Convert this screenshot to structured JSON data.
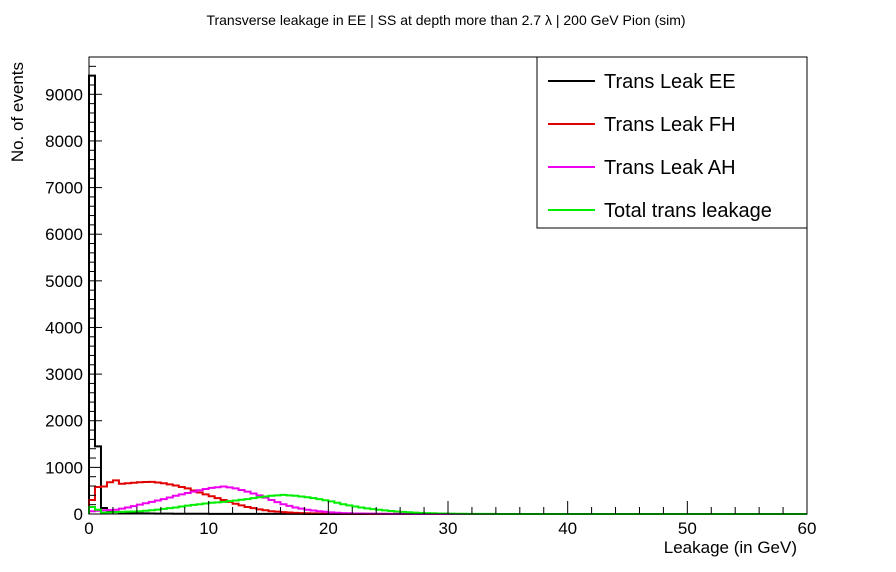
{
  "chart_data": {
    "type": "line",
    "title": "Transverse leakage in EE | SS at depth more than 2.7     λ | 200 GeV Pion (sim)",
    "xlabel": "Leakage (in GeV)",
    "ylabel": "No. of events",
    "xlim": [
      0,
      60
    ],
    "ylim": [
      0,
      9800
    ],
    "bin_width": 0.5,
    "x_ticks": [
      0,
      10,
      20,
      30,
      40,
      50,
      60
    ],
    "y_ticks": [
      0,
      1000,
      2000,
      3000,
      4000,
      5000,
      6000,
      7000,
      8000,
      9000
    ],
    "legend_position": "top-right",
    "series": [
      {
        "name": "Trans Leak EE",
        "color": "#000000",
        "x": [
          0,
          0.5,
          1,
          1.5,
          2,
          2.5,
          3,
          4,
          5,
          6,
          7,
          8,
          10,
          15,
          20,
          30,
          40,
          50,
          60
        ],
        "y": [
          9400,
          1450,
          130,
          60,
          40,
          30,
          20,
          15,
          10,
          8,
          6,
          5,
          3,
          2,
          1,
          0,
          0,
          0,
          0
        ]
      },
      {
        "name": "Trans Leak FH",
        "color": "#e00000",
        "x": [
          0,
          0.5,
          1,
          1.5,
          2,
          2.5,
          3,
          4,
          5,
          6,
          7,
          8,
          9,
          10,
          11,
          12,
          13,
          14,
          15,
          16,
          17,
          18,
          19,
          20,
          22,
          25,
          30,
          40,
          60
        ],
        "y": [
          300,
          580,
          590,
          680,
          720,
          650,
          660,
          680,
          690,
          660,
          610,
          550,
          460,
          380,
          300,
          220,
          150,
          100,
          60,
          40,
          25,
          15,
          10,
          8,
          4,
          2,
          0,
          0,
          0
        ]
      },
      {
        "name": "Trans Leak AH",
        "color": "#ee00ee",
        "x": [
          0,
          0.5,
          1,
          2,
          3,
          4,
          5,
          6,
          7,
          8,
          9,
          10,
          11,
          12,
          13,
          14,
          15,
          16,
          17,
          18,
          19,
          20,
          21,
          22,
          23,
          24,
          25,
          27,
          30,
          60
        ],
        "y": [
          60,
          70,
          80,
          90,
          140,
          200,
          260,
          320,
          390,
          450,
          510,
          560,
          590,
          550,
          480,
          400,
          300,
          210,
          140,
          90,
          60,
          35,
          20,
          12,
          8,
          5,
          3,
          1,
          0,
          0
        ]
      },
      {
        "name": "Total trans leakage",
        "color": "#00ee00",
        "x": [
          0,
          1,
          2,
          3,
          4,
          5,
          6,
          7,
          8,
          9,
          10,
          11,
          12,
          13,
          14,
          15,
          16,
          17,
          18,
          19,
          20,
          21,
          22,
          23,
          24,
          25,
          26,
          27,
          28,
          29,
          30,
          31,
          32,
          35,
          40,
          60
        ],
        "y": [
          150,
          30,
          40,
          50,
          60,
          80,
          110,
          140,
          180,
          210,
          240,
          260,
          290,
          320,
          360,
          390,
          410,
          390,
          360,
          320,
          270,
          210,
          160,
          120,
          90,
          65,
          45,
          30,
          20,
          12,
          8,
          4,
          2,
          1,
          0,
          0
        ]
      }
    ]
  }
}
